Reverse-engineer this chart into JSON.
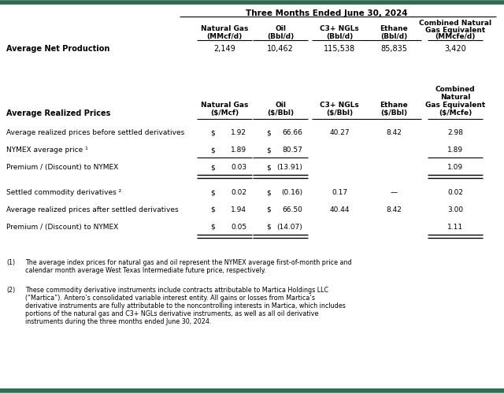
{
  "title": "Three Months Ended June 30, 2024",
  "bg_color": "#ffffff",
  "top_bar_color": "#2d6a4f",
  "section1": {
    "col_names": [
      "Natural Gas",
      "Oil",
      "C3+ NGLs",
      "Ethane",
      "Combined Natural\nGas Equivalent"
    ],
    "col_units": [
      "(MMcf/d)",
      "(Bbl/d)",
      "(Bbl/d)",
      "(Bbl/d)",
      "(MMcfe/d)"
    ],
    "row_label": "Average Net Production",
    "row_values": [
      "2,149",
      "10,462",
      "115,538",
      "85,835",
      "3,420"
    ]
  },
  "section2_label": "Average Realized Prices",
  "section2_col_names": [
    "Natural Gas",
    "Oil",
    "C3+ NGLs",
    "Ethane"
  ],
  "section2_col_units": [
    "($/Mcf)",
    "($/Bbl)",
    "($/Bbl)",
    "($/Bbl)"
  ],
  "section2_last_col": [
    "Combined",
    "Natural",
    "Gas Equivalent",
    "($/Mcfe)"
  ],
  "section2_rows": [
    {
      "label": "Average realized prices before settled derivatives",
      "has_dollar": [
        true,
        true,
        false,
        false,
        false
      ],
      "values": [
        "1.92",
        "66.66",
        "40.27",
        "8.42",
        "2.98"
      ],
      "underline_after": false,
      "double_underline_after": false,
      "spacer_before": false
    },
    {
      "label": "NYMEX average price ¹",
      "has_dollar": [
        true,
        true,
        false,
        false,
        false
      ],
      "values": [
        "1.89",
        "80.57",
        "",
        "",
        "1.89"
      ],
      "underline_after": true,
      "double_underline_after": false,
      "spacer_before": false
    },
    {
      "label": "Premium / (Discount) to NYMEX",
      "has_dollar": [
        true,
        true,
        false,
        false,
        false
      ],
      "values": [
        "0.03",
        "(13.91)",
        "",
        "",
        "1.09"
      ],
      "underline_after": false,
      "double_underline_after": true,
      "spacer_before": false
    },
    {
      "label": "Settled commodity derivatives ²",
      "has_dollar": [
        true,
        true,
        false,
        false,
        false
      ],
      "values": [
        "0.02",
        "(0.16)",
        "0.17",
        "—",
        "0.02"
      ],
      "underline_after": false,
      "double_underline_after": false,
      "spacer_before": true
    },
    {
      "label": "Average realized prices after settled derivatives",
      "has_dollar": [
        true,
        true,
        false,
        false,
        false
      ],
      "values": [
        "1.94",
        "66.50",
        "40.44",
        "8.42",
        "3.00"
      ],
      "underline_after": false,
      "double_underline_after": false,
      "spacer_before": false
    },
    {
      "label": "Premium / (Discount) to NYMEX",
      "has_dollar": [
        true,
        true,
        false,
        false,
        false
      ],
      "values": [
        "0.05",
        "(14.07)",
        "",
        "",
        "1.11"
      ],
      "underline_after": false,
      "double_underline_after": true,
      "spacer_before": false
    }
  ],
  "footnote1_label": "(1)",
  "footnote1_text": "The average index prices for natural gas and oil represent the NYMEX average first-of-month price and calendar month average West Texas Intermediate future price, respectively.",
  "footnote2_label": "(2)",
  "footnote2_text": "These commodity derivative instruments include contracts attributable to Martica Holdings LLC (“Martica”). Antero’s consolidated variable interest entity. All gains or losses from Martica’s derivative instruments are fully attributable to the noncontrolling interests in Martica, which includes portions of the natural gas and C3+ NGLs derivative instruments, as well as all oil derivative instruments during the three months ended June 30, 2024."
}
